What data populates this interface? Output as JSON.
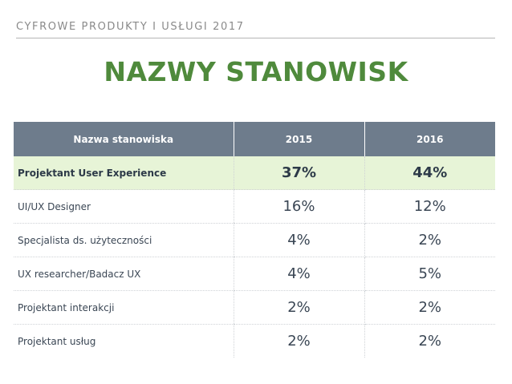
{
  "header": {
    "label": "CYFROWE PRODUKTY I USŁUGI 2017",
    "title": "NAZWY STANOWISK"
  },
  "table": {
    "columns": [
      "Nazwa stanowiska",
      "2015",
      "2016"
    ],
    "rows": [
      {
        "name": "Projektant User Experience",
        "v2015": "37%",
        "v2016": "44%"
      },
      {
        "name": " UI/UX Designer",
        "v2015": "16%",
        "v2016": "12%"
      },
      {
        "name": "Specjalista ds. użyteczności",
        "v2015": "4%",
        "v2016": "2%"
      },
      {
        "name": "UX researcher/Badacz UX",
        "v2015": "4%",
        "v2016": "5%"
      },
      {
        "name": "Projektant interakcji",
        "v2015": "2%",
        "v2016": "2%"
      },
      {
        "name": "Projektant usług",
        "v2015": "2%",
        "v2016": "2%"
      }
    ]
  },
  "colors": {
    "title": "#4f8a3c",
    "header_bg": "#6e7c8c",
    "highlight_bg": "#e7f4d7"
  }
}
